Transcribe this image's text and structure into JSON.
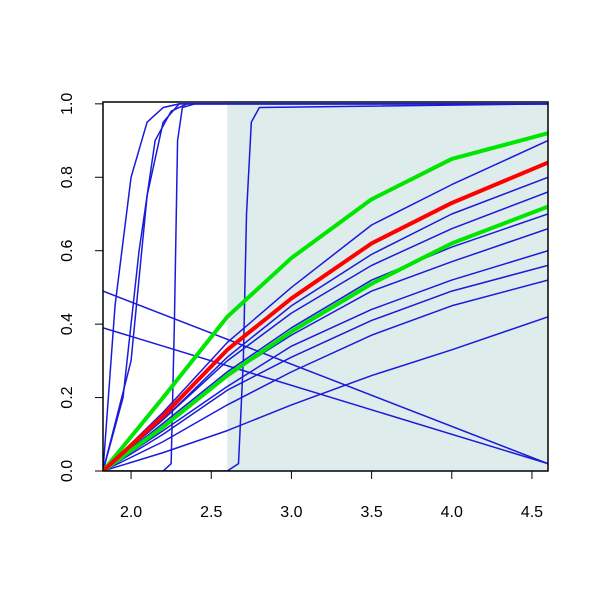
{
  "chart_data": {
    "type": "line",
    "xlim": [
      1.825,
      4.6
    ],
    "ylim": [
      0,
      1.005
    ],
    "xticks": [
      {
        "value": 2,
        "label": "2.0"
      },
      2.5,
      {
        "value": 3,
        "label": "3.0"
      },
      3.5,
      {
        "value": 4,
        "label": "4.0"
      },
      4.5
    ],
    "yticks": [
      {
        "value": 0,
        "label": "0.0"
      },
      0.2,
      0.4,
      0.6,
      0.8,
      {
        "value": 1,
        "label": "1.0"
      }
    ],
    "shade": {
      "from": 2.6,
      "to": 4.6,
      "color": "#deeceb"
    },
    "series": [
      {
        "color": "#1a1adb",
        "width": 1.5,
        "x": [
          1.825,
          2.2,
          2.6,
          3.0,
          3.5,
          4.0,
          4.6
        ],
        "values": [
          0,
          0.16,
          0.35,
          0.5,
          0.67,
          0.78,
          0.9
        ]
      },
      {
        "color": "#1a1adb",
        "width": 1.5,
        "x": [
          1.825,
          2.2,
          2.6,
          3.0,
          3.5,
          4.0,
          4.6
        ],
        "values": [
          0,
          0.14,
          0.31,
          0.45,
          0.59,
          0.7,
          0.8
        ]
      },
      {
        "color": "#1a1adb",
        "width": 1.5,
        "x": [
          1.825,
          2.2,
          2.6,
          3.0,
          3.5,
          4.0,
          4.6
        ],
        "values": [
          0,
          0.14,
          0.3,
          0.43,
          0.56,
          0.66,
          0.76
        ]
      },
      {
        "color": "#1a1adb",
        "width": 1.5,
        "x": [
          1.825,
          2.2,
          2.6,
          3.0,
          3.5,
          4.0,
          4.6
        ],
        "values": [
          0,
          0.13,
          0.27,
          0.39,
          0.52,
          0.61,
          0.7
        ]
      },
      {
        "color": "#1a1adb",
        "width": 1.5,
        "x": [
          1.825,
          2.2,
          2.6,
          3.0,
          3.5,
          4.0,
          4.6
        ],
        "values": [
          0,
          0.12,
          0.26,
          0.37,
          0.49,
          0.57,
          0.66
        ]
      },
      {
        "color": "#1a1adb",
        "width": 1.5,
        "x": [
          1.825,
          2.2,
          2.6,
          3.0,
          3.5,
          4.0,
          4.6
        ],
        "values": [
          0,
          0.11,
          0.23,
          0.34,
          0.44,
          0.52,
          0.6
        ]
      },
      {
        "color": "#1a1adb",
        "width": 1.5,
        "x": [
          1.825,
          2.2,
          2.6,
          3.0,
          3.5,
          4.0,
          4.6
        ],
        "values": [
          0,
          0.1,
          0.22,
          0.31,
          0.41,
          0.49,
          0.56
        ]
      },
      {
        "color": "#1a1adb",
        "width": 1.5,
        "x": [
          1.825,
          2.2,
          2.6,
          3.0,
          3.5,
          4.0,
          4.6
        ],
        "values": [
          0,
          0.08,
          0.18,
          0.27,
          0.37,
          0.45,
          0.52
        ]
      },
      {
        "color": "#1a1adb",
        "width": 1.5,
        "x": [
          1.825,
          2.2,
          2.6,
          3.0,
          3.5,
          4.0,
          4.6
        ],
        "values": [
          0,
          0.05,
          0.11,
          0.18,
          0.26,
          0.33,
          0.42
        ]
      },
      {
        "color": "#1a1adb",
        "width": 1.5,
        "x": [
          1.825,
          4.6
        ],
        "values": [
          0.49,
          0.02
        ]
      },
      {
        "color": "#1a1adb",
        "width": 1.5,
        "x": [
          1.825,
          4.6
        ],
        "values": [
          0.39,
          0.02
        ]
      },
      {
        "color": "#1a1adb",
        "width": 1.5,
        "x": [
          1.825,
          1.9,
          2.0,
          2.1,
          2.2,
          2.3,
          4.6
        ],
        "values": [
          0,
          0.45,
          0.8,
          0.95,
          0.99,
          1,
          1
        ]
      },
      {
        "color": "#1a1adb",
        "width": 1.5,
        "x": [
          1.825,
          1.95,
          2.05,
          2.15,
          2.25,
          2.35,
          4.6
        ],
        "values": [
          0,
          0.2,
          0.6,
          0.9,
          0.98,
          1,
          1
        ]
      },
      {
        "color": "#1a1adb",
        "width": 1.5,
        "x": [
          1.825,
          2.0,
          2.1,
          2.2,
          2.3,
          4.6
        ],
        "values": [
          0,
          0.3,
          0.75,
          0.95,
          1,
          1
        ]
      },
      {
        "color": "#1a1adb",
        "width": 1.5,
        "x": [
          2.2,
          2.25,
          2.27,
          2.29,
          2.32,
          2.4,
          4.6
        ],
        "values": [
          0,
          0.02,
          0.4,
          0.9,
          0.99,
          1,
          1
        ]
      },
      {
        "color": "#1a1adb",
        "width": 1.5,
        "x": [
          1.825,
          2.6,
          2.67,
          2.7,
          2.72,
          2.75,
          2.8,
          4.6
        ],
        "values": [
          0,
          0,
          0.02,
          0.3,
          0.7,
          0.95,
          0.99,
          1
        ]
      },
      {
        "color": "#00e600",
        "width": 4,
        "x": [
          1.825,
          2.2,
          2.6,
          3.0,
          3.5,
          4.0,
          4.6
        ],
        "values": [
          0,
          0.2,
          0.42,
          0.58,
          0.74,
          0.85,
          0.92
        ]
      },
      {
        "color": "#00e600",
        "width": 4,
        "x": [
          1.825,
          2.2,
          2.6,
          3.0,
          3.5,
          4.0,
          4.6
        ],
        "values": [
          0,
          0.12,
          0.26,
          0.38,
          0.51,
          0.62,
          0.72
        ]
      },
      {
        "color": "#ff0000",
        "width": 4,
        "x": [
          1.825,
          2.2,
          2.6,
          3.0,
          3.5,
          4.0,
          4.6
        ],
        "values": [
          0,
          0.15,
          0.33,
          0.47,
          0.62,
          0.73,
          0.84
        ]
      }
    ]
  }
}
